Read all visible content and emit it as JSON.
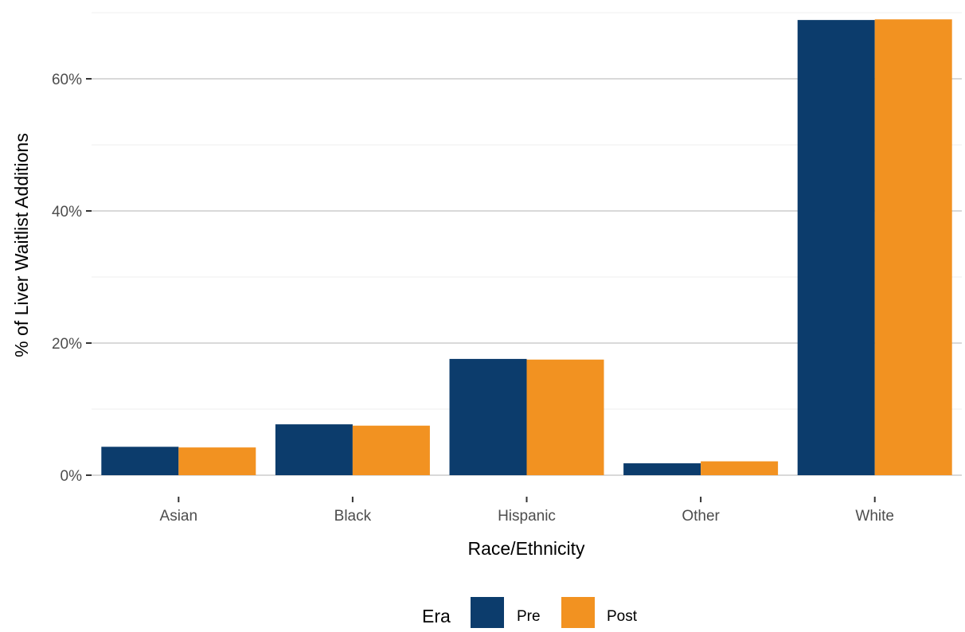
{
  "chart_data": {
    "type": "bar",
    "categories": [
      "Asian",
      "Black",
      "Hispanic",
      "Other",
      "White"
    ],
    "series": [
      {
        "name": "Pre",
        "values": [
          4.3,
          7.7,
          17.6,
          1.8,
          68.9
        ],
        "color": "#0c3c6c"
      },
      {
        "name": "Post",
        "values": [
          4.2,
          7.5,
          17.5,
          2.1,
          69.0
        ],
        "color": "#f29221"
      }
    ],
    "xlabel": "Race/Ethnicity",
    "ylabel": "% of Liver Waitlist Additions",
    "ylim": [
      0,
      70
    ],
    "yticks": [
      0,
      20,
      40,
      60
    ],
    "ytick_labels": [
      "0%",
      "20%",
      "40%",
      "60%"
    ],
    "legend": {
      "title": "Era",
      "position": "bottom",
      "entries": [
        "Pre",
        "Post"
      ]
    },
    "grid": true,
    "grid_color": "#d9d9d9",
    "minor_grid_color": "#efefef"
  }
}
